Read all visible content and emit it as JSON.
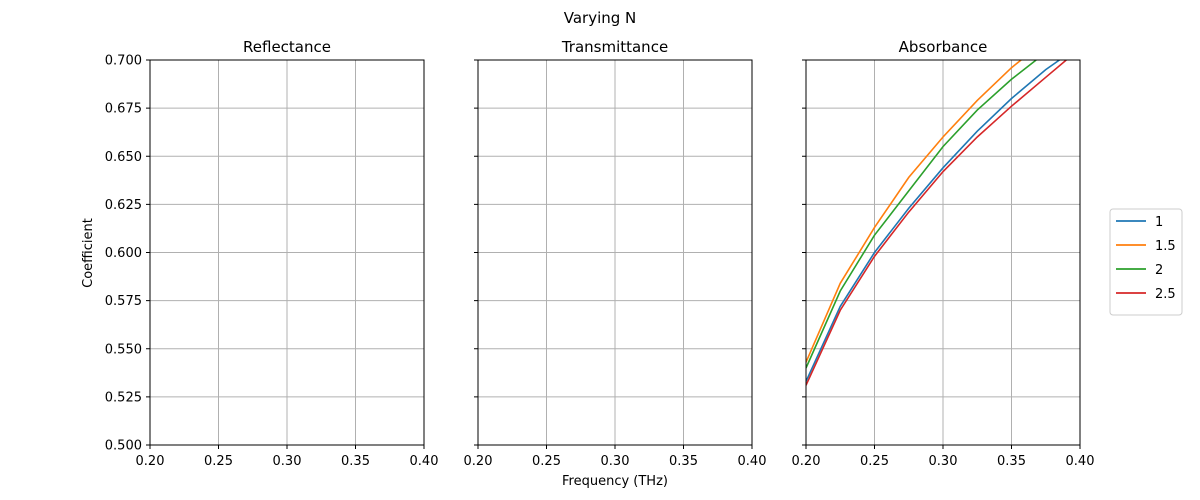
{
  "figure": {
    "suptitle": "Varying N",
    "xlabel": "Frequency (THz)",
    "ylabel": "Coefficient"
  },
  "chart_data": [
    {
      "type": "line",
      "title": "Reflectance",
      "xlim": [
        0.2,
        0.4
      ],
      "ylim": [
        0.5,
        0.7
      ],
      "xticks": [
        "0.20",
        "0.25",
        "0.30",
        "0.35",
        "0.40"
      ],
      "yticks": [
        "0.500",
        "0.525",
        "0.550",
        "0.575",
        "0.600",
        "0.625",
        "0.650",
        "0.675",
        "0.700"
      ],
      "grid": true,
      "series": []
    },
    {
      "type": "line",
      "title": "Transmittance",
      "xlim": [
        0.2,
        0.4
      ],
      "ylim": [
        0.5,
        0.7
      ],
      "xticks": [
        "0.20",
        "0.25",
        "0.30",
        "0.35",
        "0.40"
      ],
      "yticks": [],
      "grid": true,
      "series": []
    },
    {
      "type": "line",
      "title": "Absorbance",
      "xlim": [
        0.2,
        0.4
      ],
      "ylim": [
        0.5,
        0.7
      ],
      "xticks": [
        "0.20",
        "0.25",
        "0.30",
        "0.35",
        "0.40"
      ],
      "yticks": [],
      "grid": true,
      "legend_position": "outside-right",
      "series": [
        {
          "name": "1",
          "color": "#1f77b4",
          "points": [
            [
              0.2,
              0.533
            ],
            [
              0.225,
              0.572
            ],
            [
              0.25,
              0.6
            ],
            [
              0.275,
              0.623
            ],
            [
              0.3,
              0.644
            ],
            [
              0.325,
              0.663
            ],
            [
              0.35,
              0.68
            ],
            [
              0.375,
              0.695
            ],
            [
              0.385,
              0.7
            ]
          ]
        },
        {
          "name": "1.5",
          "color": "#ff7f0e",
          "points": [
            [
              0.2,
              0.543
            ],
            [
              0.225,
              0.584
            ],
            [
              0.25,
              0.613
            ],
            [
              0.275,
              0.639
            ],
            [
              0.3,
              0.66
            ],
            [
              0.325,
              0.679
            ],
            [
              0.35,
              0.696
            ],
            [
              0.357,
              0.7
            ]
          ]
        },
        {
          "name": "2",
          "color": "#2ca02c",
          "points": [
            [
              0.2,
              0.54
            ],
            [
              0.225,
              0.58
            ],
            [
              0.25,
              0.609
            ],
            [
              0.275,
              0.632
            ],
            [
              0.3,
              0.655
            ],
            [
              0.325,
              0.674
            ],
            [
              0.35,
              0.69
            ],
            [
              0.368,
              0.7
            ]
          ]
        },
        {
          "name": "2.5",
          "color": "#d62728",
          "points": [
            [
              0.2,
              0.531
            ],
            [
              0.225,
              0.57
            ],
            [
              0.25,
              0.598
            ],
            [
              0.275,
              0.621
            ],
            [
              0.3,
              0.642
            ],
            [
              0.325,
              0.66
            ],
            [
              0.35,
              0.676
            ],
            [
              0.375,
              0.691
            ],
            [
              0.39,
              0.7
            ]
          ]
        }
      ]
    }
  ]
}
